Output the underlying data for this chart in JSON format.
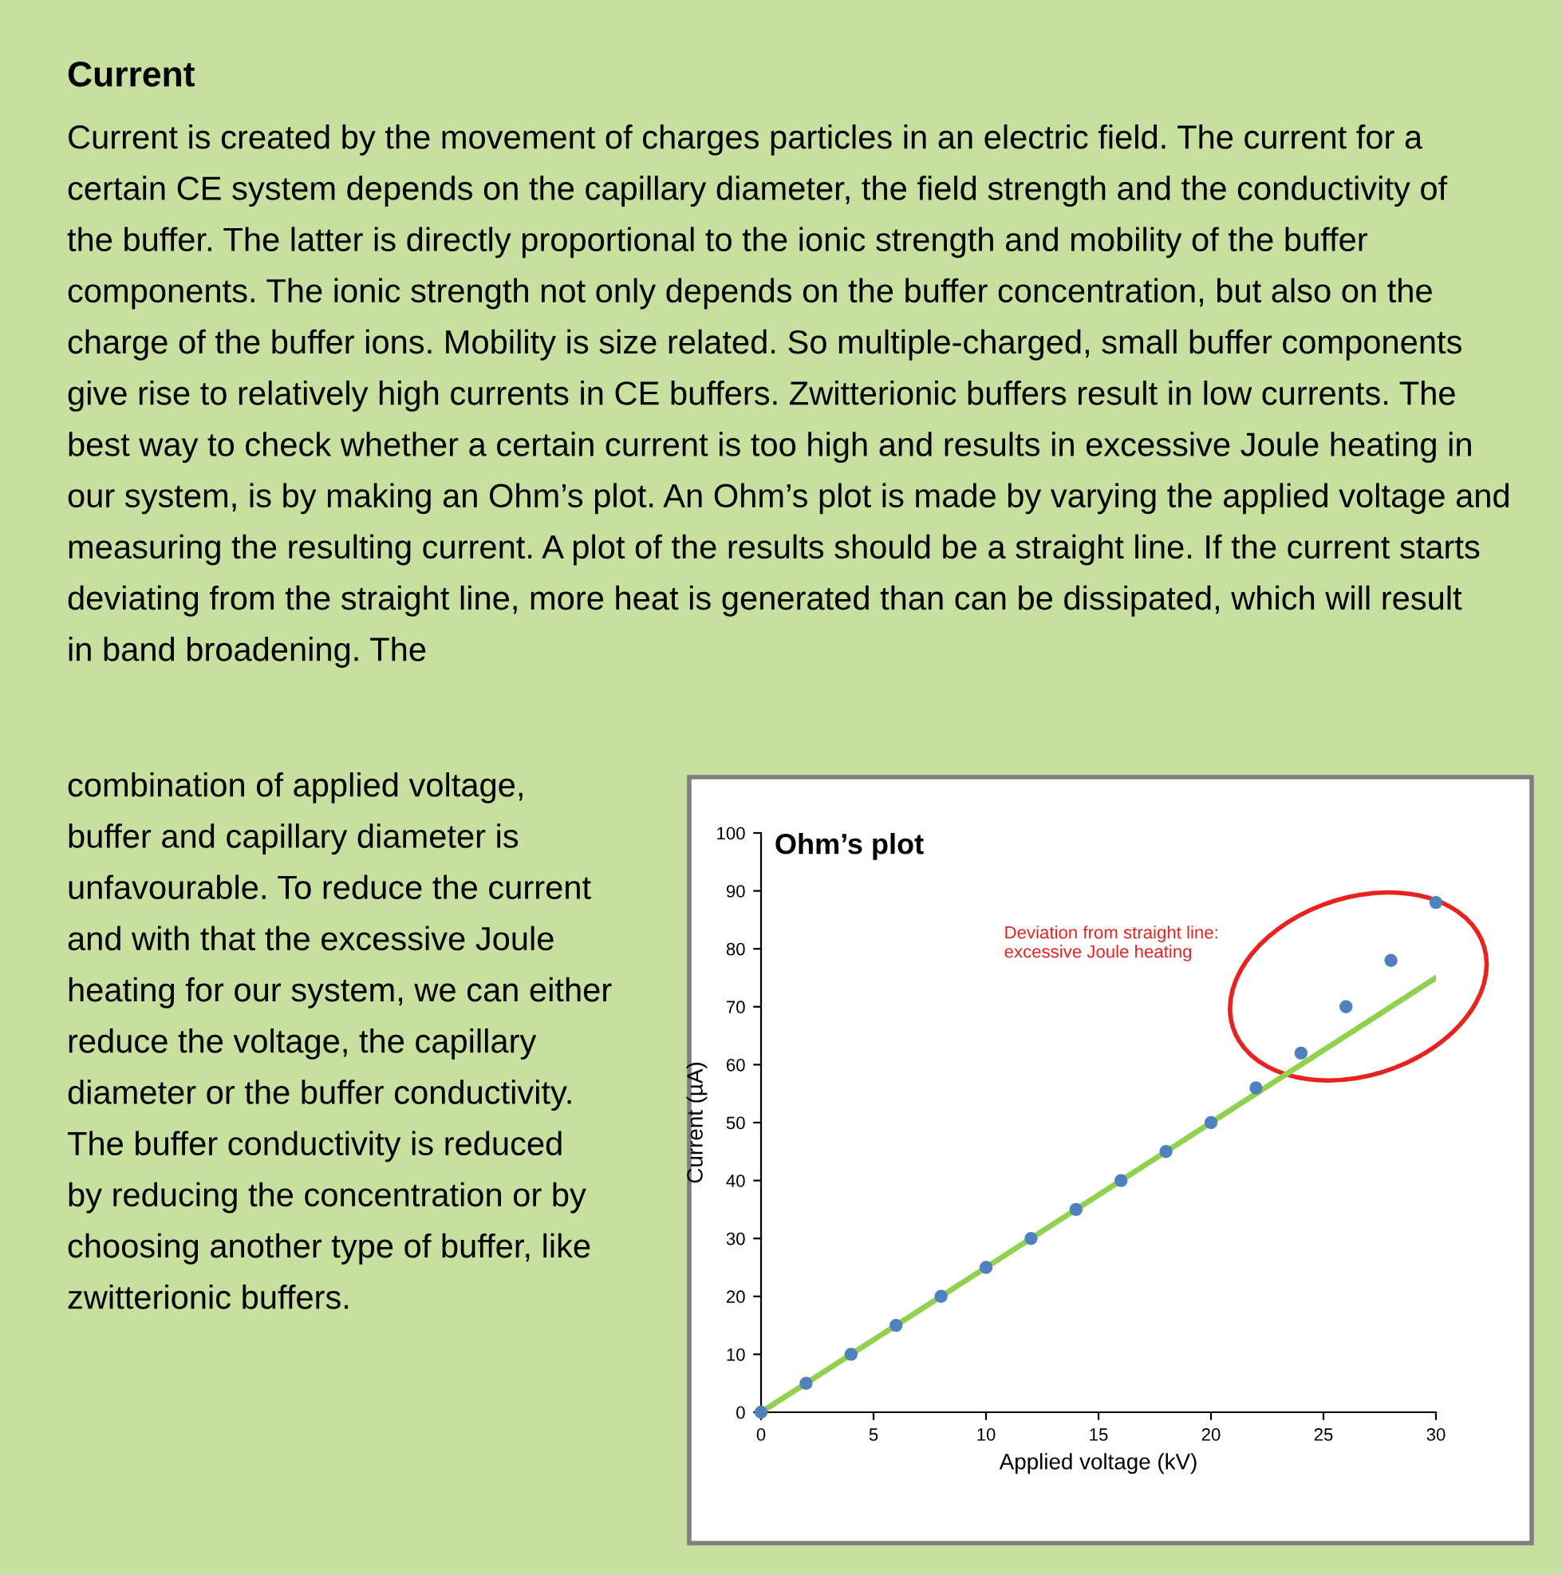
{
  "chart_data": {
    "type": "line",
    "title": "Ohm’s plot",
    "xlabel": "Applied voltage (kV)",
    "ylabel": "Current (µA)",
    "x": [
      0,
      2,
      4,
      6,
      8,
      10,
      12,
      14,
      16,
      18,
      20,
      22,
      24,
      26,
      28,
      30
    ],
    "series": [
      {
        "type": "scatter",
        "marker": "circle",
        "color": "#4f81bd",
        "values": [
          0,
          5,
          10,
          15,
          20,
          25,
          30,
          35,
          40,
          45,
          50,
          56,
          62,
          70,
          78,
          88
        ]
      },
      {
        "color": "#92d050",
        "x": [
          0,
          30
        ],
        "values": [
          0,
          75
        ]
      }
    ],
    "xlim": [
      0,
      30
    ],
    "xticks": [
      0,
      5,
      10,
      15,
      20,
      25,
      30
    ],
    "ylim": [
      0,
      100
    ],
    "yticks": [
      0,
      10,
      20,
      30,
      40,
      50,
      60,
      70,
      80,
      90,
      100
    ],
    "grid": false,
    "legend": false,
    "annotations": [
      "Current",
      "Current is created by the movement of charges particles in an electric field. The current for a\ncertain CE system depends on the capillary diameter, the field strength and the conductivity of\nthe buffer. The latter is directly proportional to the ionic strength and mobility of the buffer\ncomponents. The ionic strength not only depends on the buffer concentration, but also on the\ncharge of the buffer ions. Mobility is size related. So multiple-charged, small buffer components\ngive rise to relatively high currents in CE buffers. Zwitterionic buffers result in low currents. The\nbest way to check whether a certain current is too high and results in excessive Joule heating in\nour system, is by making an Ohm’s plot. An Ohm’s plot is made by varying the applied voltage and\nmeasuring the resulting current. A plot of the results should be a straight line. If the current starts\ndeviating from the straight line, more heat is generated than can be dissipated, which will result\nin band broadening. The",
      "combination of applied voltage,\nbuffer and capillary diameter is\nunfavourable. To reduce the current\nand with that the excessive Joule\nheating for our system, we can either\nreduce the voltage, the capillary\ndiameter or the buffer conductivity.\nThe buffer conductivity is reduced\nby reducing the concentration or by\nchoosing another type of buffer, like\nzwitterionic buffers.",
      "Deviation from straight line:\nexcessive Joule heating"
    ]
  }
}
